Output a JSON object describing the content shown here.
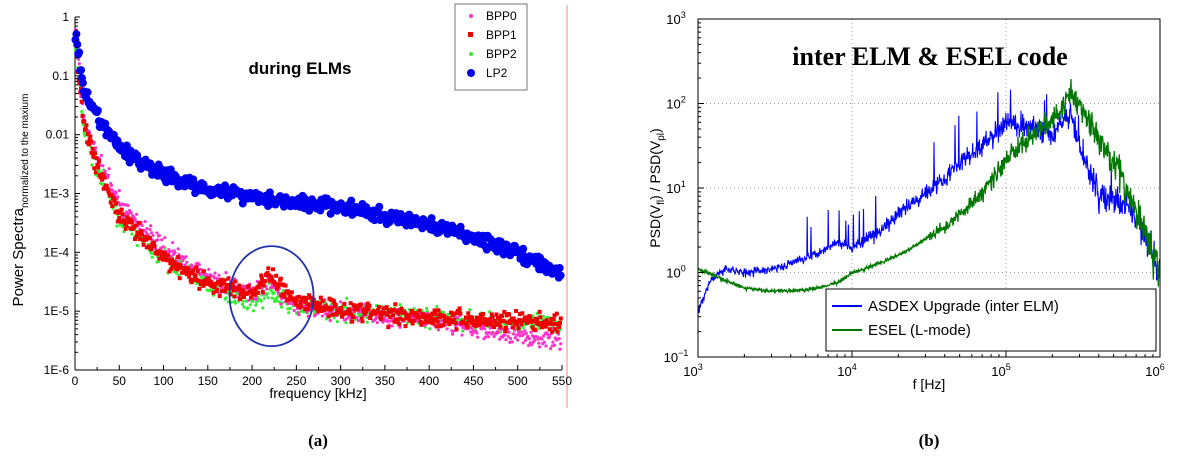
{
  "colors": {
    "bpp0": "#ff33cc",
    "bpp1": "#ee0000",
    "bpp2": "#33ee33",
    "lp2": "#0000ee",
    "asdex": "#0000ff",
    "esel": "#007700",
    "circle": "#2233aa",
    "divider": "#ee8888"
  },
  "panel_labels": {
    "a": "(a)",
    "b": "(b)"
  },
  "chart_data": [
    {
      "type": "scatter",
      "title": "during ELMs",
      "xlabel": "frequency [kHz]",
      "ylabel_main": "Power Spectra",
      "ylabel_sub": "normalized to the maxium",
      "x_scale": "linear",
      "y_scale": "log",
      "xlim": [
        0,
        550
      ],
      "ylim": [
        1e-06,
        1
      ],
      "x_ticks": [
        0,
        50,
        100,
        150,
        200,
        250,
        300,
        350,
        400,
        450,
        500,
        550
      ],
      "x_tick_labels": [
        "0",
        "50",
        "100",
        "150",
        "200",
        "250",
        "300",
        "350",
        "400",
        "450",
        "500",
        "550"
      ],
      "y_ticks": [
        1e-06,
        1e-05,
        0.0001,
        0.001,
        0.01,
        0.1,
        1
      ],
      "y_tick_labels": [
        "1E-6",
        "1E-5",
        "1E-4",
        "1E-3",
        "0.01",
        "0.1",
        "1"
      ],
      "legend_position": "top-right",
      "annotation": {
        "type": "circle",
        "center_x": 222,
        "center_y": 1.8e-05,
        "note": "ellipse marking ~220 kHz feature"
      },
      "series": [
        {
          "name": "BPP0",
          "marker": "small-dot",
          "x": [
            0,
            10,
            25,
            50,
            100,
            150,
            200,
            220,
            250,
            300,
            350,
            400,
            450,
            500,
            550
          ],
          "y": [
            0.8,
            0.02,
            0.004,
            0.0007,
            0.00012,
            4e-05,
            2e-05,
            3e-05,
            1.2e-05,
            1e-05,
            8e-06,
            7e-06,
            5e-06,
            4e-06,
            3e-06
          ]
        },
        {
          "name": "BPP1",
          "marker": "square",
          "x": [
            0,
            10,
            25,
            50,
            100,
            150,
            200,
            220,
            250,
            300,
            350,
            400,
            450,
            500,
            550
          ],
          "y": [
            0.5,
            0.015,
            0.003,
            0.0004,
            8e-05,
            3e-05,
            2e-05,
            4e-05,
            1.5e-05,
            1.1e-05,
            9e-06,
            8e-06,
            7e-06,
            7e-06,
            6e-06
          ]
        },
        {
          "name": "BPP2",
          "marker": "small-dot",
          "x": [
            0,
            10,
            25,
            50,
            100,
            150,
            200,
            220,
            250,
            300,
            350,
            400,
            450,
            500,
            550
          ],
          "y": [
            0.4,
            0.012,
            0.0025,
            0.0004,
            8e-05,
            3e-05,
            1.5e-05,
            2e-05,
            1.2e-05,
            1e-05,
            9e-06,
            8e-06,
            7e-06,
            6e-06,
            6e-06
          ]
        },
        {
          "name": "LP2",
          "marker": "circle",
          "x": [
            0,
            10,
            25,
            50,
            100,
            150,
            200,
            250,
            300,
            350,
            400,
            450,
            500,
            550
          ],
          "y": [
            0.6,
            0.05,
            0.02,
            0.006,
            0.002,
            0.0012,
            0.0009,
            0.0007,
            0.0006,
            0.0004,
            0.0003,
            0.00018,
            0.0001,
            4e-05
          ]
        }
      ]
    },
    {
      "type": "line",
      "title": "inter ELM & ESEL code",
      "xlabel": "f [Hz]",
      "ylabel_parts": [
        "PSD(V",
        "fl",
        ") / PSD(V",
        "pl",
        ")"
      ],
      "x_scale": "log",
      "y_scale": "log",
      "xlim": [
        1000,
        1000000
      ],
      "ylim": [
        0.1,
        1000
      ],
      "grid": "dotted",
      "x_ticks": [
        1000,
        10000,
        100000,
        1000000
      ],
      "x_tick_labels": [
        {
          "base": "10",
          "exp": "3"
        },
        {
          "base": "10",
          "exp": "4"
        },
        {
          "base": "10",
          "exp": "5"
        },
        {
          "base": "10",
          "exp": "6"
        }
      ],
      "y_ticks": [
        0.1,
        1,
        10,
        100,
        1000
      ],
      "y_tick_labels": [
        {
          "base": "10",
          "exp": "−1"
        },
        {
          "base": "10",
          "exp": "0"
        },
        {
          "base": "10",
          "exp": "1"
        },
        {
          "base": "10",
          "exp": "2"
        },
        {
          "base": "10",
          "exp": "3"
        }
      ],
      "legend_position": "bottom-right",
      "series": [
        {
          "name": "ASDEX Upgrade (inter ELM)",
          "x": [
            1000,
            1200,
            1500,
            2000,
            3000,
            5000,
            8000,
            10000,
            15000,
            20000,
            30000,
            50000,
            80000,
            100000,
            150000,
            200000,
            260000,
            300000,
            400000,
            600000,
            800000,
            1000000
          ],
          "y": [
            0.35,
            0.8,
            1.1,
            1.0,
            1.1,
            1.5,
            2.3,
            2.0,
            3.0,
            5.0,
            9.0,
            20.0,
            40.0,
            60.0,
            50.0,
            45.0,
            80.0,
            30.0,
            8.0,
            6.0,
            3.0,
            0.8
          ]
        },
        {
          "name": "ESEL (L-mode)",
          "x": [
            1000,
            1500,
            2000,
            3000,
            5000,
            8000,
            10000,
            15000,
            20000,
            30000,
            50000,
            80000,
            100000,
            150000,
            200000,
            260000,
            300000,
            400000,
            600000,
            800000,
            1000000
          ],
          "y": [
            1.1,
            0.8,
            0.65,
            0.6,
            0.62,
            0.75,
            1.0,
            1.3,
            1.6,
            2.5,
            5.0,
            12.0,
            22.0,
            45.0,
            60.0,
            130.0,
            90.0,
            40.0,
            10.0,
            3.0,
            1.0
          ]
        }
      ]
    }
  ]
}
